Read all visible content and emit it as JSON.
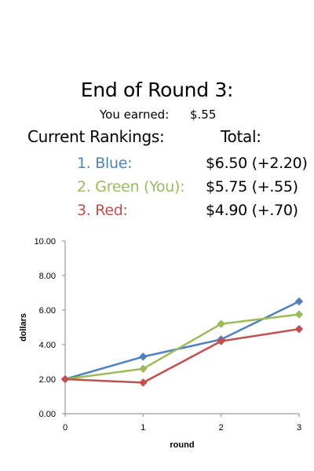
{
  "header": {
    "title": "End of Round 3:",
    "earned_label": "You earned:",
    "earned_value": "$.55",
    "rankings_label": "Current Rankings:",
    "total_label": "Total:"
  },
  "rankings": [
    {
      "name": "1. Blue:",
      "total": "$6.50 (+2.20)",
      "color": "#4f81bd"
    },
    {
      "name": "2. Green (You):",
      "total": "$5.75 (+.55)",
      "color": "#9bbb59"
    },
    {
      "name": "3. Red:",
      "total": "$4.90 (+.70)",
      "color": "#c0504d"
    }
  ],
  "chart_data": {
    "type": "line",
    "x": [
      0,
      1,
      2,
      3
    ],
    "xlabel": "round",
    "ylabel": "dollars",
    "ylim": [
      0,
      10
    ],
    "yticks": [
      "0.00",
      "2.00",
      "4.00",
      "6.00",
      "8.00",
      "10.00"
    ],
    "xticks": [
      "0",
      "1",
      "2",
      "3"
    ],
    "grid": false,
    "series": [
      {
        "color": "#4f81bd",
        "values": [
          2.0,
          3.3,
          4.3,
          6.5
        ]
      },
      {
        "color": "#9bbb59",
        "values": [
          2.0,
          2.6,
          5.2,
          5.75
        ]
      },
      {
        "color": "#c0504d",
        "values": [
          2.0,
          1.8,
          4.2,
          4.9
        ]
      }
    ]
  }
}
